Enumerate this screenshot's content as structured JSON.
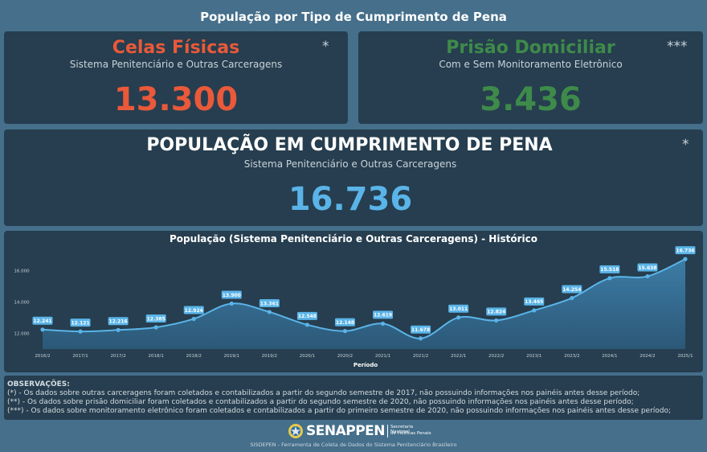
{
  "page_title": "População por Tipo de Cumprimento de Pena",
  "cards": {
    "celas": {
      "title": "Celas Físicas",
      "subtitle": "Sistema Penitenciário e Outras Carceragens",
      "value": "13.300",
      "mark": "*",
      "color": "#e9593a"
    },
    "domiciliar": {
      "title": "Prisão Domiciliar",
      "subtitle": "Com e Sem Monitoramento Eletrônico",
      "value": "3.436",
      "mark": "***",
      "color": "#3e8a4a"
    },
    "total": {
      "title": "POPULAÇÃO EM CUMPRIMENTO DE PENA",
      "subtitle": "Sistema Penitenciário e Outras Carceragens",
      "value": "16.736",
      "mark": "*",
      "color": "#5ab4e8"
    }
  },
  "chart_data": {
    "type": "area",
    "title": "População (Sistema Penitenciário e Outras Carceragens) - Histórico",
    "xlabel": "Período",
    "ylabel": "",
    "x": [
      "2016/2",
      "2017/1",
      "2017/2",
      "2018/1",
      "2018/2",
      "2019/1",
      "2019/2",
      "2020/1",
      "2020/2",
      "2021/1",
      "2021/2",
      "2022/1",
      "2022/2",
      "2023/1",
      "2023/2",
      "2024/1",
      "2024/2",
      "2025/1"
    ],
    "values": [
      12241,
      12121,
      12216,
      12385,
      12924,
      13900,
      13361,
      12548,
      12148,
      12619,
      11678,
      13011,
      12824,
      13465,
      14254,
      15518,
      15638,
      16736
    ],
    "labels": [
      "12.241",
      "12.121",
      "12.216",
      "12.385",
      "12.924",
      "13.900",
      "13.361",
      "12.548",
      "12.148",
      "12.619",
      "11.678",
      "13.011",
      "12.824",
      "13.465",
      "14.254",
      "15.518",
      "15.638",
      "16.736"
    ],
    "yticks": [
      12000,
      14000,
      16000
    ],
    "ytick_labels": [
      "12.000",
      "14.000",
      "16.000"
    ],
    "ylim": [
      11000,
      17000
    ],
    "color": "#5ab4e8",
    "grid": false,
    "legend": "none"
  },
  "observations": {
    "title": "OBSERVAÇÕES:",
    "lines": [
      "(*) - Os dados sobre outras carceragens foram coletados e contabilizados a partir do segundo semestre de 2017, não possuindo informações nos painéis antes desse período;",
      "(**) - Os dados sobre prisão domiciliar foram coletados e contabilizados a partir do segundo semestre de 2020, não possuindo informações nos painéis antes desse período;",
      "(***) - Os dados sobre monitoramento eletrônico foram coletados e contabilizados a partir do primeiro semestre de 2020, não possuindo informações nos painéis antes desse período;"
    ]
  },
  "footer": {
    "logo_text": "SENAPPEN",
    "logo_caption_1": "Secretaria Nacional",
    "logo_caption_2": "de Políticas Penais",
    "text": "SISDEPEN - Ferramenta de Coleta de Dados do Sistema Penitenciário Brasileiro"
  }
}
